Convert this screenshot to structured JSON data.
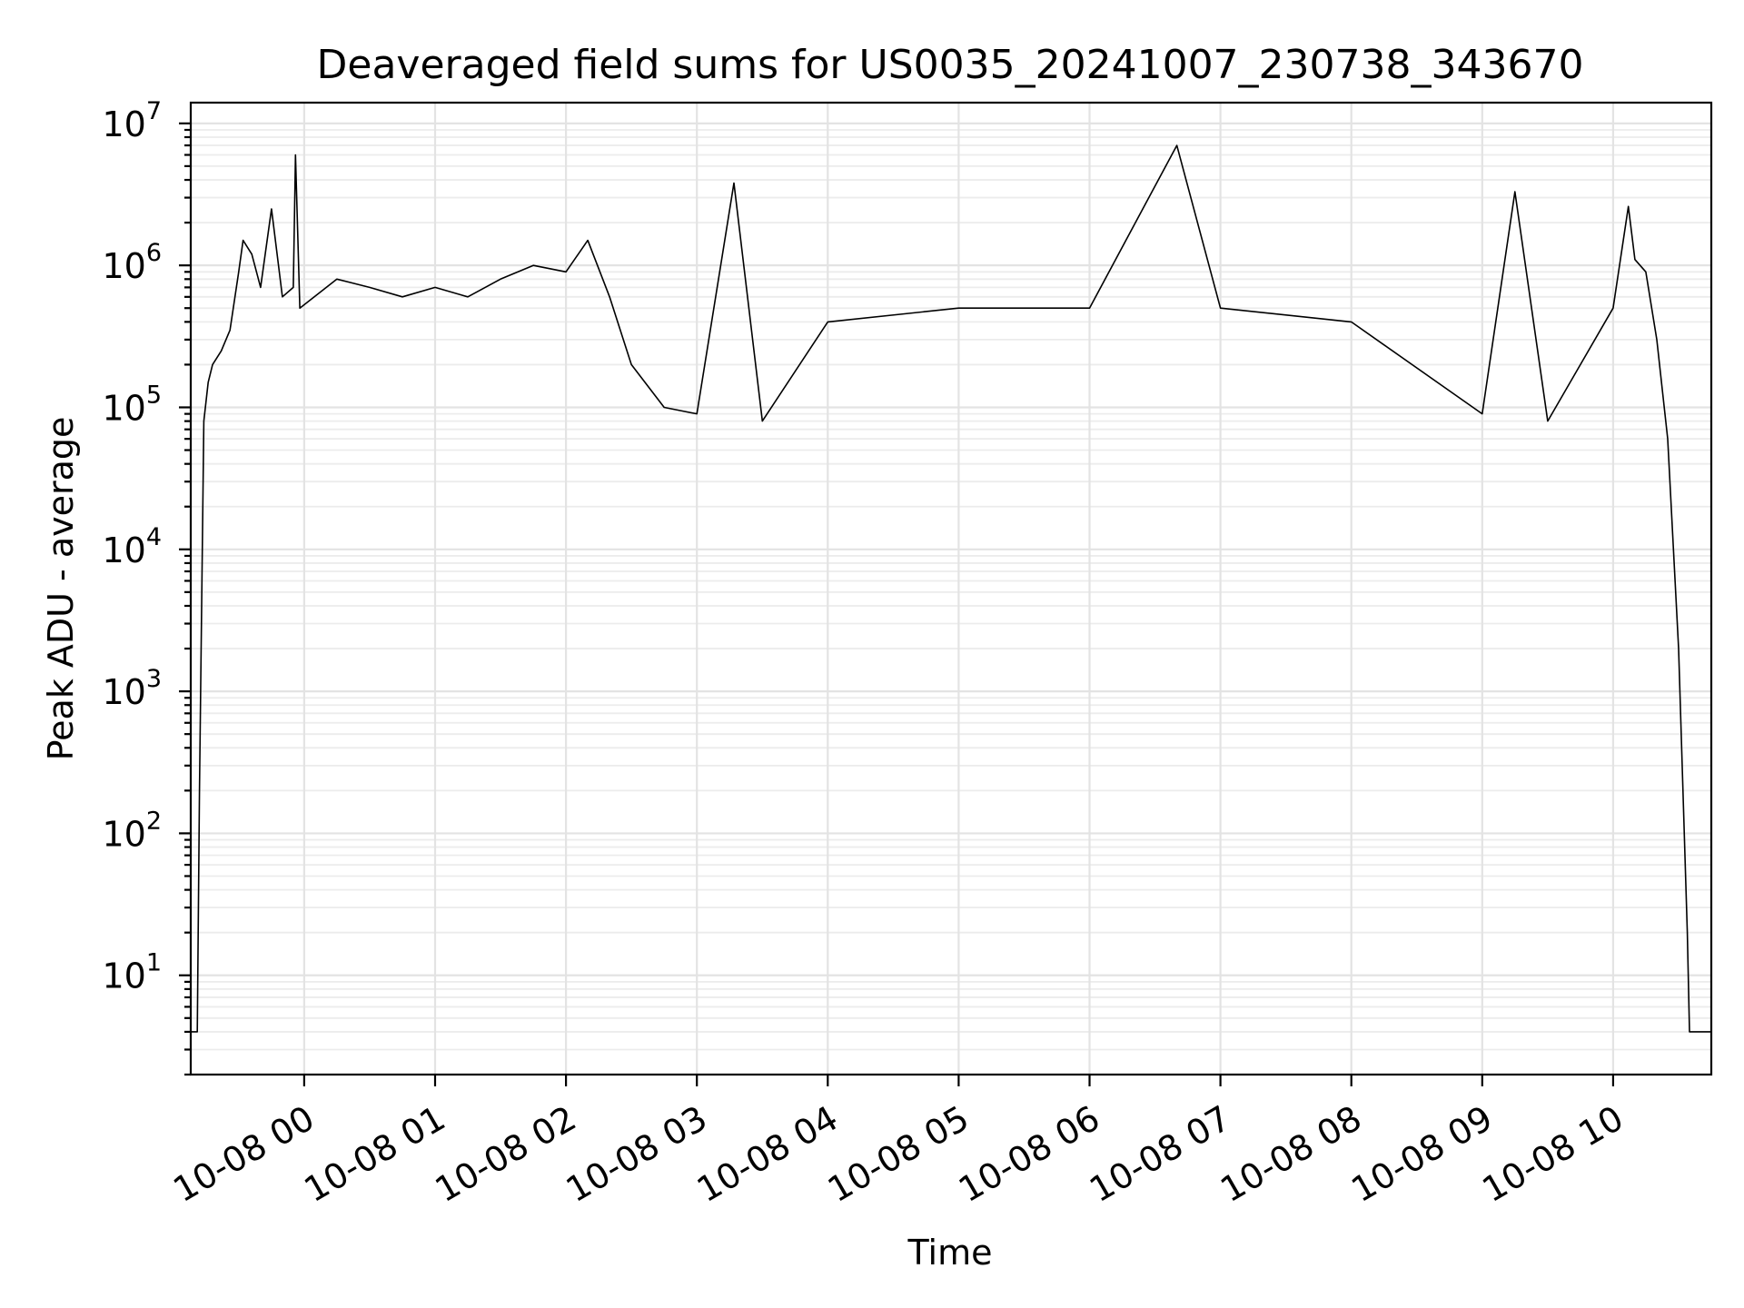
{
  "chart_data": {
    "type": "line",
    "title": "Deaveraged field sums for US0035_20241007_230738_343670",
    "xlabel": "Time",
    "ylabel": "Peak ADU - average",
    "yscale": "log",
    "ylim": [
      2,
      14000000
    ],
    "xlim": [
      "2024-10-07 23:08",
      "2024-10-08 10:45"
    ],
    "grid": true,
    "line_color": "#000000",
    "x_ticks": [
      {
        "t": "2024-10-08 00:00",
        "label": "10-08 00"
      },
      {
        "t": "2024-10-08 01:00",
        "label": "10-08 01"
      },
      {
        "t": "2024-10-08 02:00",
        "label": "10-08 02"
      },
      {
        "t": "2024-10-08 03:00",
        "label": "10-08 03"
      },
      {
        "t": "2024-10-08 04:00",
        "label": "10-08 04"
      },
      {
        "t": "2024-10-08 05:00",
        "label": "10-08 05"
      },
      {
        "t": "2024-10-08 06:00",
        "label": "10-08 06"
      },
      {
        "t": "2024-10-08 07:00",
        "label": "10-08 07"
      },
      {
        "t": "2024-10-08 08:00",
        "label": "10-08 08"
      },
      {
        "t": "2024-10-08 09:00",
        "label": "10-08 09"
      },
      {
        "t": "2024-10-08 10:00",
        "label": "10-08 10"
      }
    ],
    "y_ticks": [
      {
        "value": 10,
        "base": "10",
        "exp": "1"
      },
      {
        "value": 100,
        "base": "10",
        "exp": "2"
      },
      {
        "value": 1000,
        "base": "10",
        "exp": "3"
      },
      {
        "value": 10000,
        "base": "10",
        "exp": "4"
      },
      {
        "value": 100000,
        "base": "10",
        "exp": "5"
      },
      {
        "value": 1000000,
        "base": "10",
        "exp": "6"
      },
      {
        "value": 10000000,
        "base": "10",
        "exp": "7"
      }
    ],
    "series": [
      {
        "points": [
          [
            "2024-10-07 23:08",
            4
          ],
          [
            "2024-10-07 23:11",
            4
          ],
          [
            "2024-10-07 23:12",
            200
          ],
          [
            "2024-10-07 23:14",
            80000
          ],
          [
            "2024-10-07 23:16",
            150000
          ],
          [
            "2024-10-07 23:18",
            200000
          ],
          [
            "2024-10-07 23:22",
            250000
          ],
          [
            "2024-10-07 23:26",
            350000
          ],
          [
            "2024-10-07 23:30",
            900000
          ],
          [
            "2024-10-07 23:32",
            1500000
          ],
          [
            "2024-10-07 23:36",
            1200000
          ],
          [
            "2024-10-07 23:40",
            700000
          ],
          [
            "2024-10-07 23:45",
            2500000
          ],
          [
            "2024-10-07 23:50",
            600000
          ],
          [
            "2024-10-07 23:55",
            700000
          ],
          [
            "2024-10-07 23:56",
            6000000
          ],
          [
            "2024-10-07 23:58",
            500000
          ],
          [
            "2024-10-08 00:15",
            800000
          ],
          [
            "2024-10-08 00:30",
            700000
          ],
          [
            "2024-10-08 00:45",
            600000
          ],
          [
            "2024-10-08 01:00",
            700000
          ],
          [
            "2024-10-08 01:15",
            600000
          ],
          [
            "2024-10-08 01:30",
            800000
          ],
          [
            "2024-10-08 01:45",
            1000000
          ],
          [
            "2024-10-08 02:00",
            900000
          ],
          [
            "2024-10-08 02:10",
            1500000
          ],
          [
            "2024-10-08 02:20",
            600000
          ],
          [
            "2024-10-08 02:30",
            200000
          ],
          [
            "2024-10-08 02:45",
            100000
          ],
          [
            "2024-10-08 03:00",
            90000
          ],
          [
            "2024-10-08 03:17",
            3800000
          ],
          [
            "2024-10-08 03:30",
            80000
          ],
          [
            "2024-10-08 04:00",
            400000
          ],
          [
            "2024-10-08 05:00",
            500000
          ],
          [
            "2024-10-08 06:00",
            500000
          ],
          [
            "2024-10-08 06:40",
            7000000
          ],
          [
            "2024-10-08 07:00",
            500000
          ],
          [
            "2024-10-08 08:00",
            400000
          ],
          [
            "2024-10-08 09:00",
            90000
          ],
          [
            "2024-10-08 09:15",
            3300000
          ],
          [
            "2024-10-08 09:30",
            80000
          ],
          [
            "2024-10-08 09:45",
            200000
          ],
          [
            "2024-10-08 10:00",
            500000
          ],
          [
            "2024-10-08 10:07",
            2600000
          ],
          [
            "2024-10-08 10:10",
            1100000
          ],
          [
            "2024-10-08 10:15",
            900000
          ],
          [
            "2024-10-08 10:20",
            300000
          ],
          [
            "2024-10-08 10:25",
            60000
          ],
          [
            "2024-10-08 10:30",
            2000
          ],
          [
            "2024-10-08 10:34",
            20
          ],
          [
            "2024-10-08 10:35",
            4
          ],
          [
            "2024-10-08 10:45",
            4
          ]
        ]
      }
    ]
  }
}
